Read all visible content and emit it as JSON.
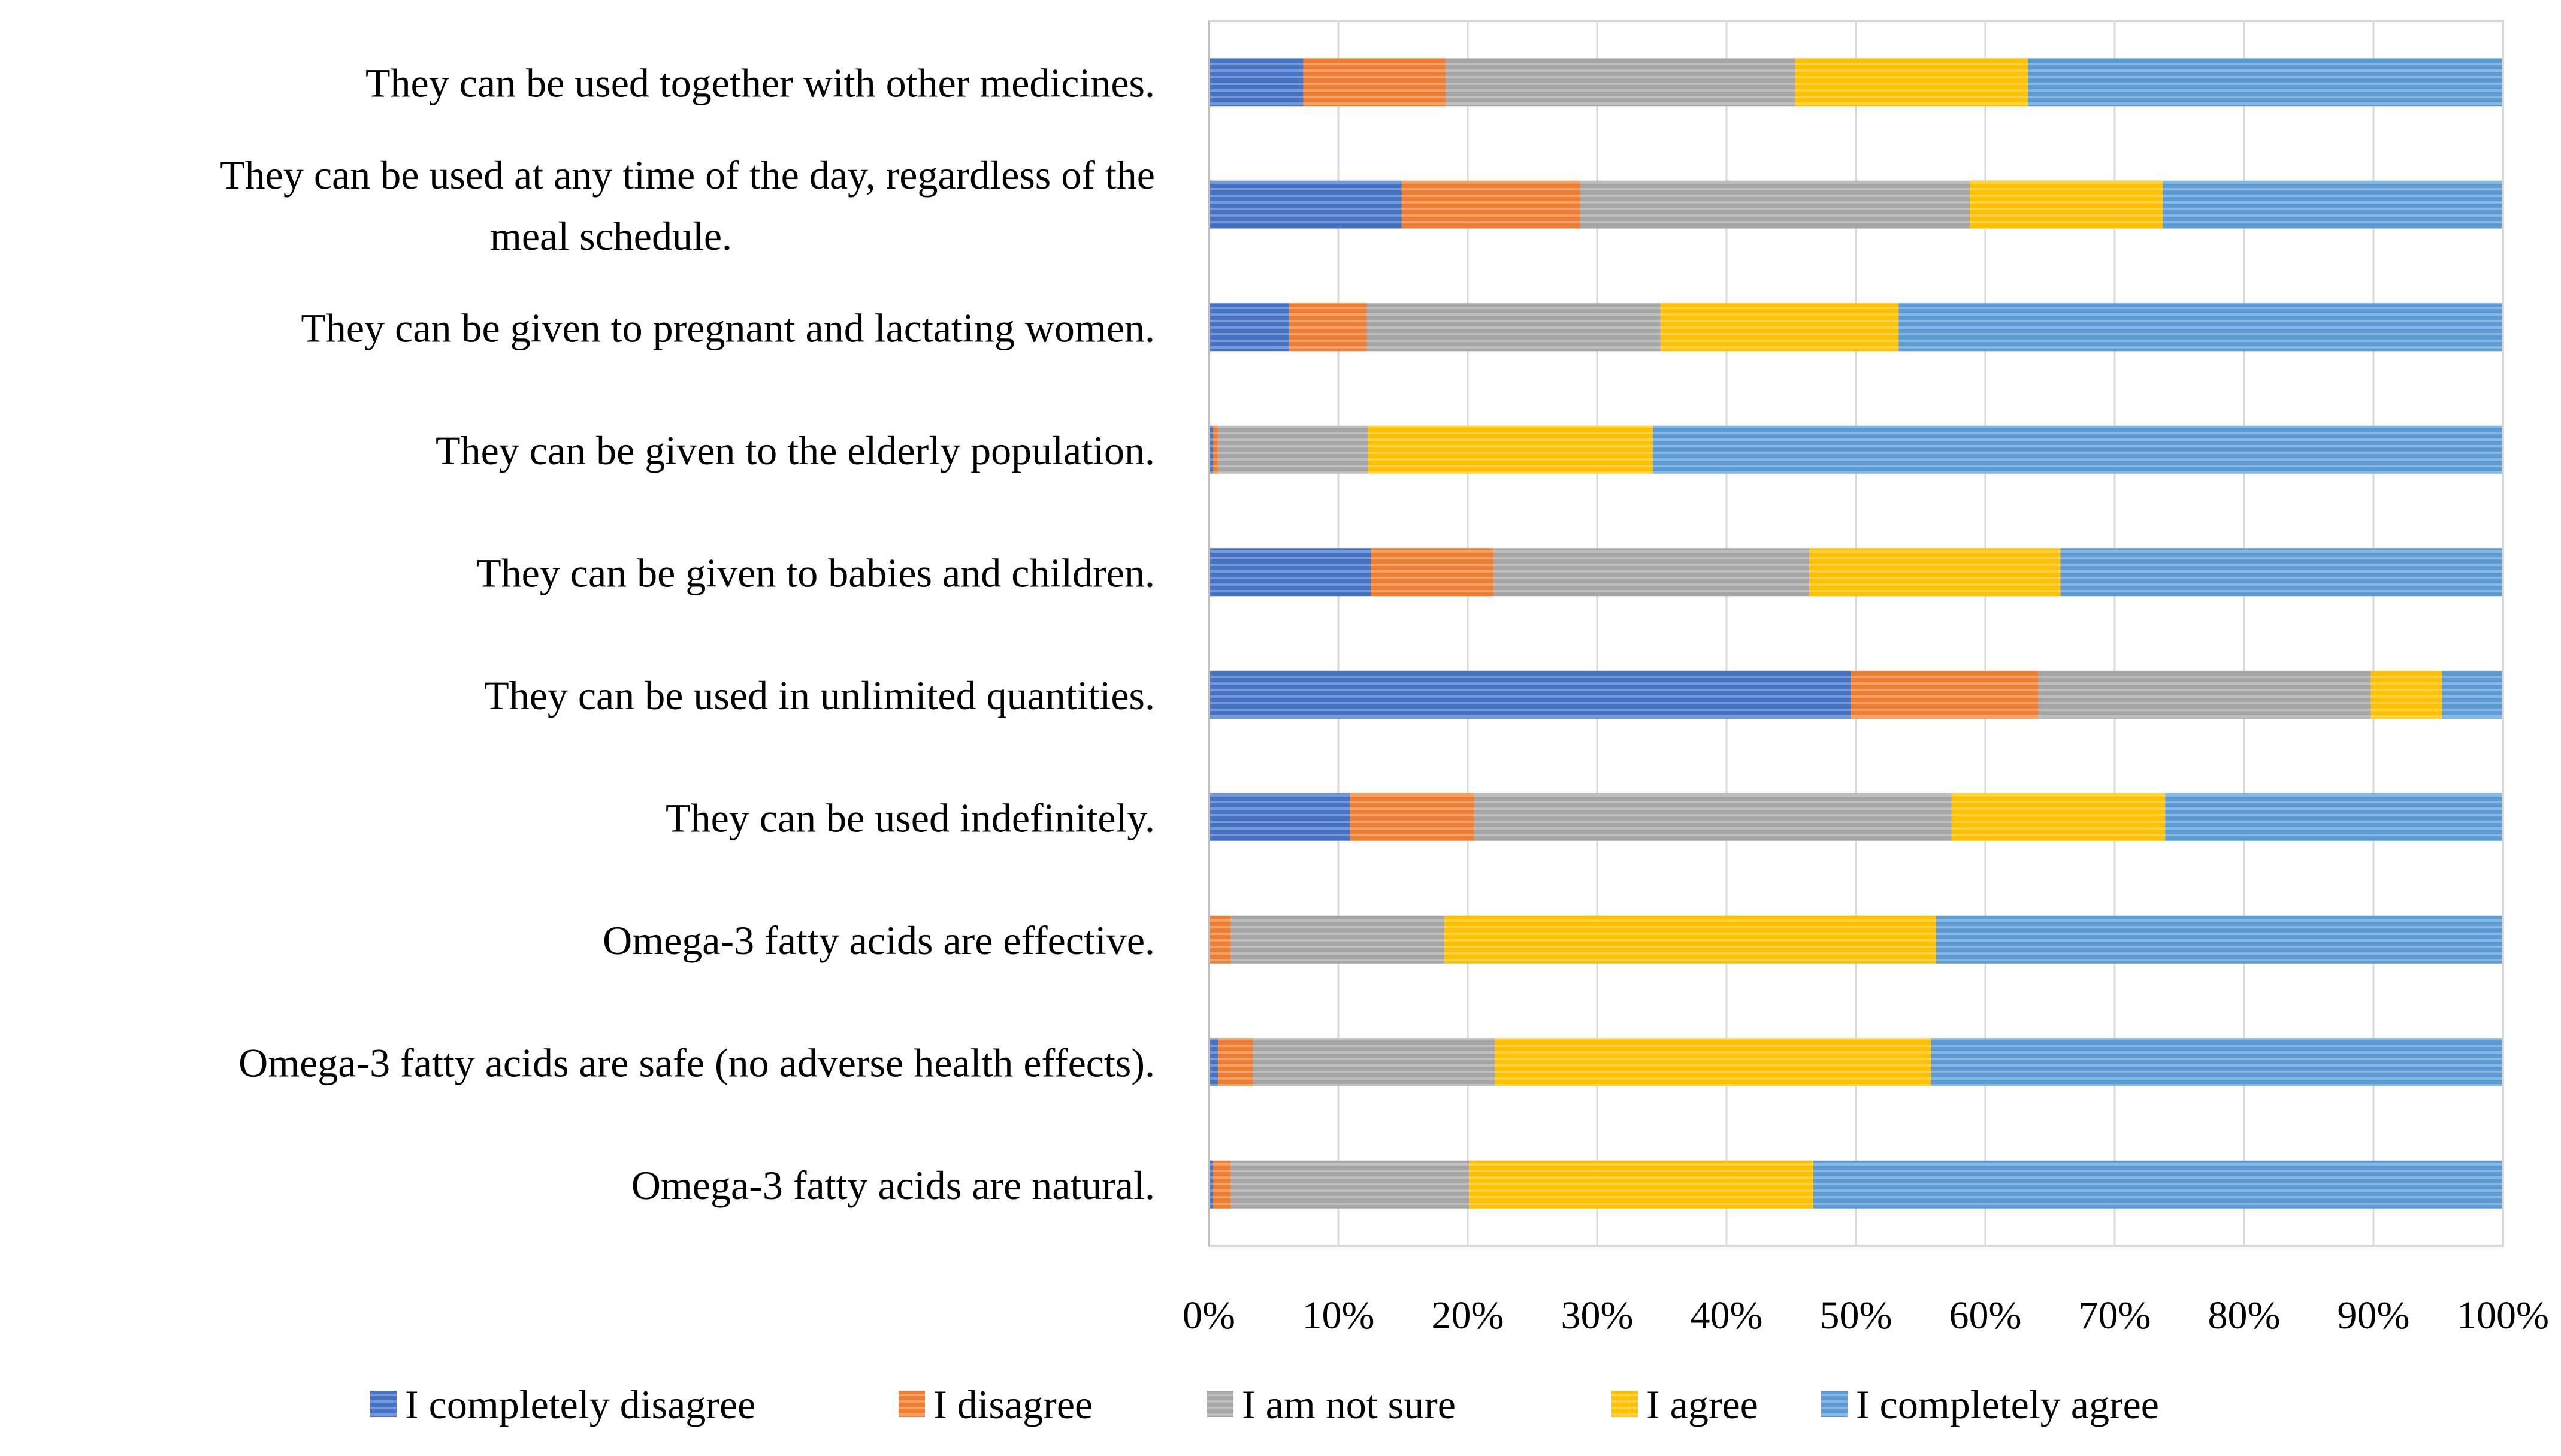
{
  "chart_data": {
    "type": "bar",
    "orientation": "horizontal",
    "stacked": "percent",
    "title": "",
    "xlabel": "",
    "ylabel": "",
    "xlim": [
      0,
      100
    ],
    "x_ticks": [
      "0%",
      "10%",
      "20%",
      "30%",
      "40%",
      "50%",
      "60%",
      "70%",
      "80%",
      "90%",
      "100%"
    ],
    "grid": "vertical",
    "legend_position": "bottom",
    "categories": [
      {
        "lines": [
          "They can be used together with other medicines."
        ]
      },
      {
        "lines": [
          "They can be used at any time of the day, regardless of the",
          "meal schedule."
        ]
      },
      {
        "lines": [
          "They can be given to pregnant and lactating women."
        ]
      },
      {
        "lines": [
          "They can be given to the elderly population."
        ]
      },
      {
        "lines": [
          "They can be given to babies and children."
        ]
      },
      {
        "lines": [
          "They can be used in unlimited quantities."
        ]
      },
      {
        "lines": [
          "They can be used indefinitely."
        ]
      },
      {
        "lines": [
          "Omega-3 fatty acids are effective."
        ]
      },
      {
        "lines": [
          "Omega-3 fatty acids are safe (no adverse health effects)."
        ]
      },
      {
        "lines": [
          "Omega-3 fatty acids are natural."
        ]
      }
    ],
    "series": [
      {
        "name": "I completely disagree",
        "color": "#4472C4",
        "values": [
          7.3,
          14.9,
          6.2,
          0.3,
          12.5,
          49.6,
          10.9,
          0.0,
          0.7,
          0.3
        ]
      },
      {
        "name": "I disagree",
        "color": "#ED7D31",
        "values": [
          11.0,
          13.8,
          6.0,
          0.4,
          9.5,
          14.5,
          9.6,
          1.7,
          2.7,
          1.4
        ]
      },
      {
        "name": "I am not sure",
        "color": "#A5A5A5",
        "values": [
          27.0,
          30.1,
          22.7,
          11.6,
          24.4,
          25.7,
          36.9,
          16.5,
          18.7,
          18.4
        ]
      },
      {
        "name": "I agree",
        "color": "#FFC000",
        "values": [
          18.0,
          14.9,
          18.4,
          22.0,
          19.4,
          5.5,
          16.5,
          38.0,
          33.7,
          26.6
        ]
      },
      {
        "name": "I completely agree",
        "color": "#5B9BD5",
        "values": [
          36.7,
          26.3,
          46.7,
          65.7,
          34.2,
          4.7,
          26.1,
          43.8,
          44.2,
          53.3
        ]
      }
    ]
  }
}
